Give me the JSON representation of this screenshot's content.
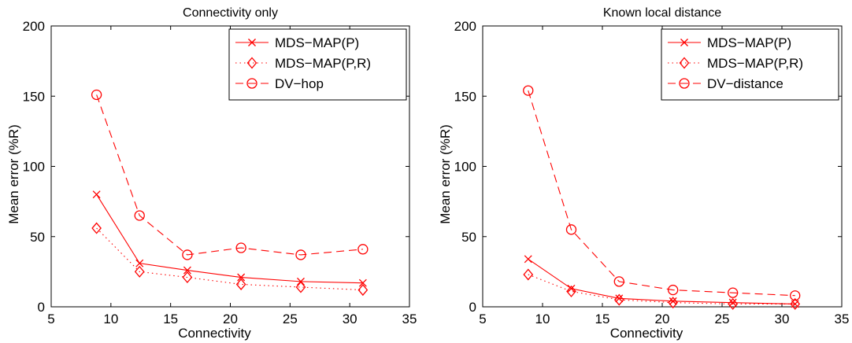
{
  "chart_data": [
    {
      "type": "line",
      "title": "Connectivity only",
      "xlabel": "Connectivity",
      "ylabel": "Mean error (%R)",
      "xlim": [
        5,
        35
      ],
      "ylim": [
        0,
        200
      ],
      "xticks": [
        "5",
        "10",
        "15",
        "20",
        "25",
        "30",
        "35"
      ],
      "yticks": [
        "0",
        "50",
        "100",
        "150",
        "200"
      ],
      "legend_position": "top-right",
      "series": [
        {
          "name": "MDS−MAP(P)",
          "marker": "x",
          "style": "solid",
          "color": "#ff0000",
          "x": [
            8.8,
            12.4,
            16.4,
            20.9,
            25.9,
            31.1
          ],
          "y": [
            80,
            31,
            26,
            21,
            18,
            17
          ]
        },
        {
          "name": "MDS−MAP(P,R)",
          "marker": "diamond",
          "style": "dotted",
          "color": "#ff0000",
          "x": [
            8.8,
            12.4,
            16.4,
            20.9,
            25.9,
            31.1
          ],
          "y": [
            56,
            25,
            21,
            16,
            14,
            12
          ]
        },
        {
          "name": "DV−hop",
          "marker": "circle",
          "style": "dashed",
          "color": "#ff0000",
          "x": [
            8.8,
            12.4,
            16.4,
            20.9,
            25.9,
            31.1
          ],
          "y": [
            151,
            65,
            37,
            42,
            37,
            41
          ]
        }
      ]
    },
    {
      "type": "line",
      "title": "Known local distance",
      "xlabel": "Connectivity",
      "ylabel": "Mean error (%R)",
      "xlim": [
        5,
        35
      ],
      "ylim": [
        0,
        200
      ],
      "xticks": [
        "5",
        "10",
        "15",
        "20",
        "25",
        "30",
        "35"
      ],
      "yticks": [
        "0",
        "50",
        "100",
        "150",
        "200"
      ],
      "legend_position": "top-right",
      "series": [
        {
          "name": "MDS−MAP(P)",
          "marker": "x",
          "style": "solid",
          "color": "#ff0000",
          "x": [
            8.8,
            12.4,
            16.4,
            20.9,
            25.9,
            31.1
          ],
          "y": [
            34,
            13,
            6,
            4,
            3,
            2
          ]
        },
        {
          "name": "MDS−MAP(P,R)",
          "marker": "diamond",
          "style": "dotted",
          "color": "#ff0000",
          "x": [
            8.8,
            12.4,
            16.4,
            20.9,
            25.9,
            31.1
          ],
          "y": [
            23,
            11,
            5,
            3,
            2,
            2
          ]
        },
        {
          "name": "DV−distance",
          "marker": "circle",
          "style": "dashed",
          "color": "#ff0000",
          "x": [
            8.8,
            12.4,
            16.4,
            20.9,
            25.9,
            31.1
          ],
          "y": [
            154,
            55,
            18,
            12,
            10,
            8
          ]
        }
      ]
    }
  ]
}
